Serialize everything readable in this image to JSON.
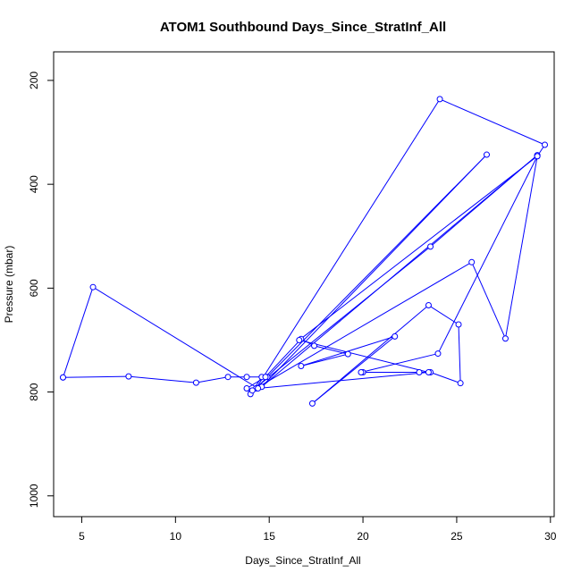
{
  "chart_data": {
    "type": "line",
    "title": "ATOM1 Southbound Days_Since_StratInf_All",
    "xlabel": "Days_Since_StratInf_All",
    "ylabel": "Pressure (mbar)",
    "xlim": [
      3.5,
      30.2
    ],
    "ylim": [
      1040,
      145
    ],
    "y_reversed": true,
    "xticks": [
      5,
      10,
      15,
      20,
      25,
      30
    ],
    "yticks": [
      200,
      400,
      600,
      800,
      1000
    ],
    "grid": false,
    "color": "#0000ff",
    "series": [
      {
        "x": [
          4.0,
          7.5,
          11.1,
          12.8,
          13.8,
          14.9,
          14.6,
          14.0,
          13.8,
          14.8,
          16.7,
          17.4,
          19.2,
          16.7,
          21.7,
          17.3,
          23.5,
          25.1,
          25.2,
          23.6,
          23.0,
          20.0,
          19.9,
          24.0,
          29.3,
          29.7,
          24.1,
          14.3,
          26.6,
          14.6,
          29.3,
          23.6,
          14.1,
          25.8,
          27.6,
          29.3,
          16.6,
          23.5,
          14.4,
          5.6,
          4.0
        ],
        "y": [
          772,
          770,
          782,
          771,
          771,
          771,
          771,
          804,
          793,
          771,
          698,
          711,
          727,
          750,
          693,
          822,
          633,
          670,
          783,
          762,
          762,
          762,
          762,
          726,
          346,
          324,
          236,
          793,
          343,
          790,
          344,
          520,
          797,
          550,
          697,
          346,
          700,
          762,
          793,
          598,
          772
        ]
      }
    ]
  }
}
